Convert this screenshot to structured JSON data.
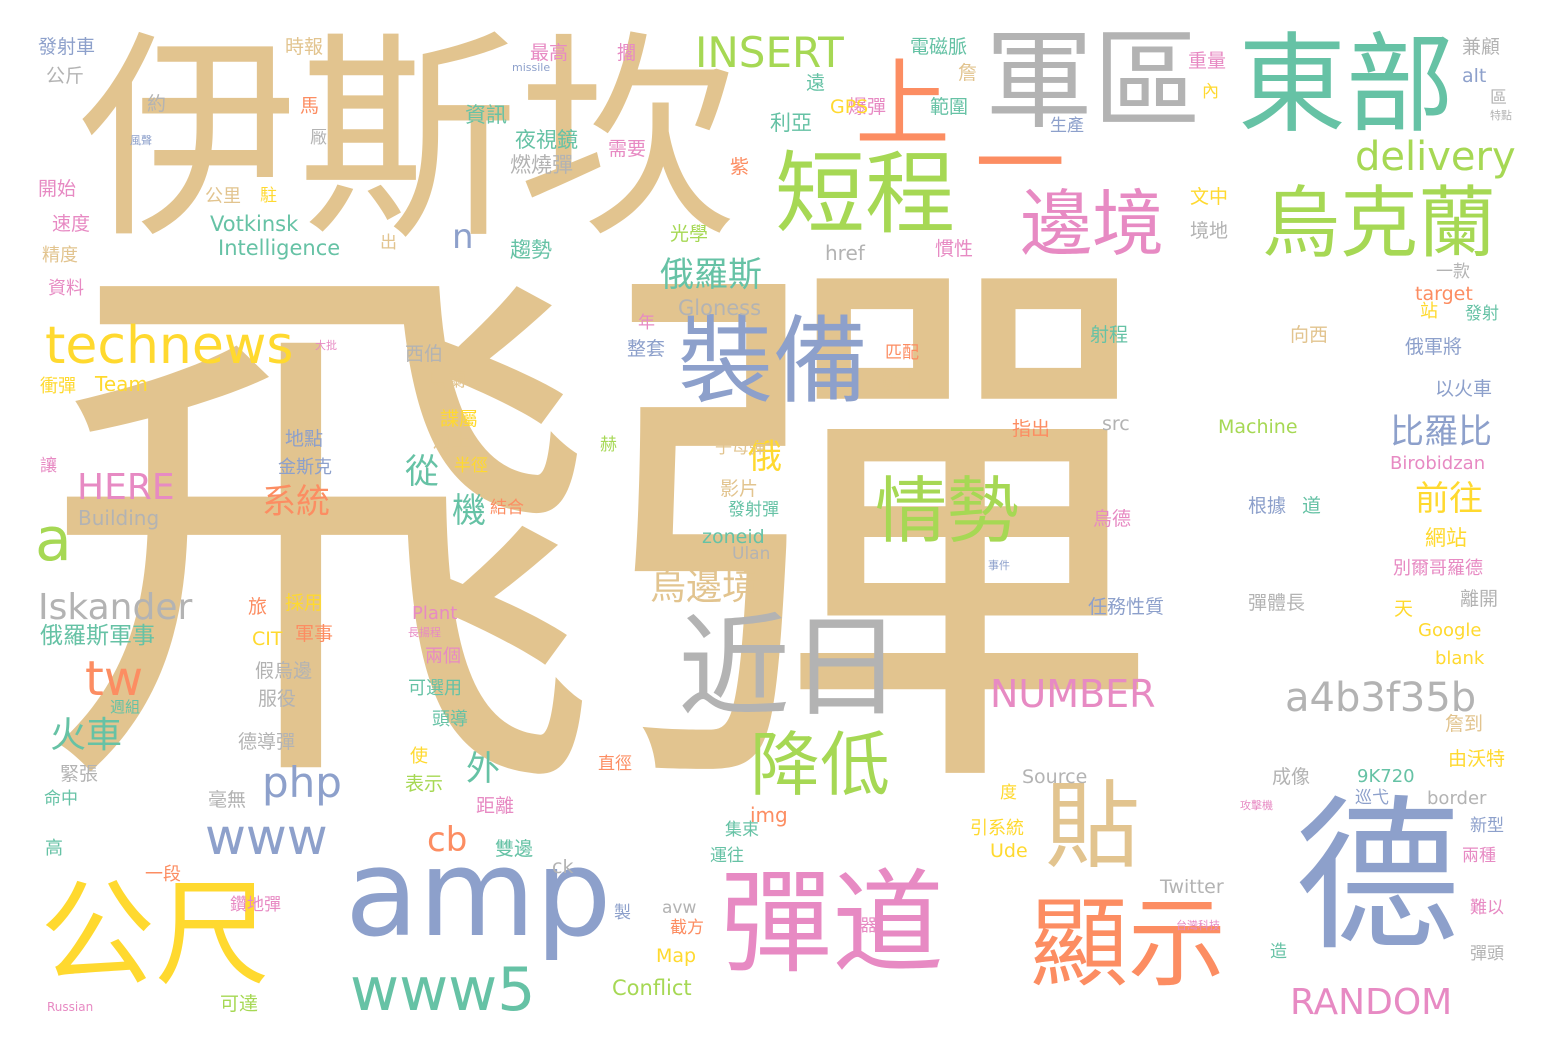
{
  "palette": {
    "tan": "#E2C48F",
    "green": "#66C2A5",
    "orange": "#FC8D62",
    "blue": "#8DA0CB",
    "pink": "#E78AC3",
    "lime": "#A6D854",
    "yellow": "#FFD92F",
    "grey": "#B3B3B3"
  },
  "words": [
    {
      "text": "飛彈",
      "color": "tan"
    },
    {
      "text": "伊斯坎",
      "color": "tan"
    },
    {
      "text": "軍區",
      "color": "grey"
    },
    {
      "text": "東部",
      "color": "green"
    },
    {
      "text": "一",
      "color": "orange"
    },
    {
      "text": "上",
      "color": "orange"
    },
    {
      "text": "短程",
      "color": "lime"
    },
    {
      "text": "邊境",
      "color": "pink"
    },
    {
      "text": "烏克蘭",
      "color": "lime"
    },
    {
      "text": "裝備",
      "color": "blue"
    },
    {
      "text": "technews",
      "color": "yellow"
    },
    {
      "text": "情勢",
      "color": "lime"
    },
    {
      "text": "近日",
      "color": "grey"
    },
    {
      "text": "貼",
      "color": "tan"
    },
    {
      "text": "德",
      "color": "blue"
    },
    {
      "text": "公尺",
      "color": "yellow"
    },
    {
      "text": "amp",
      "color": "blue"
    },
    {
      "text": "彈道",
      "color": "pink"
    },
    {
      "text": "顯示",
      "color": "orange"
    },
    {
      "text": "www5",
      "color": "green"
    },
    {
      "text": "www",
      "color": "blue"
    },
    {
      "text": "降低",
      "color": "lime"
    },
    {
      "text": "a4b3f35b",
      "color": "grey"
    },
    {
      "text": "RANDOM",
      "color": "pink"
    },
    {
      "text": "NUMBER",
      "color": "pink"
    },
    {
      "text": "delivery",
      "color": "lime"
    },
    {
      "text": "INSERT",
      "color": "lime"
    },
    {
      "text": "a",
      "color": "lime"
    },
    {
      "text": "tw",
      "color": "orange"
    },
    {
      "text": "php",
      "color": "blue"
    },
    {
      "text": "Iskander",
      "color": "grey"
    },
    {
      "text": "火車",
      "color": "green"
    },
    {
      "text": "HERE",
      "color": "pink"
    },
    {
      "text": "俄羅斯",
      "color": "green"
    },
    {
      "text": "烏邊境",
      "color": "tan"
    },
    {
      "text": "比羅比",
      "color": "blue"
    },
    {
      "text": "前往",
      "color": "yellow"
    },
    {
      "text": "系統",
      "color": "orange"
    },
    {
      "text": "cb",
      "color": "orange"
    },
    {
      "text": "n",
      "color": "blue"
    },
    {
      "text": "從",
      "color": "green"
    },
    {
      "text": "機",
      "color": "green"
    },
    {
      "text": "俄",
      "color": "yellow"
    },
    {
      "text": "外",
      "color": "green"
    },
    {
      "text": "俄羅斯軍事",
      "color": "green"
    },
    {
      "text": "Building",
      "color": "grey"
    },
    {
      "text": "Intelligence",
      "color": "green"
    },
    {
      "text": "Votkinsk",
      "color": "green"
    },
    {
      "text": "Gloness",
      "color": "grey"
    },
    {
      "text": "Team",
      "color": "yellow"
    },
    {
      "text": "資訊",
      "color": "green"
    },
    {
      "text": "夜視鏡",
      "color": "green"
    },
    {
      "text": "燃燒彈",
      "color": "grey"
    },
    {
      "text": "電磁脈",
      "color": "green"
    },
    {
      "text": "範圍",
      "color": "green"
    },
    {
      "text": "爆彈",
      "color": "pink"
    },
    {
      "text": "GPS",
      "color": "yellow"
    },
    {
      "text": "利亞",
      "color": "green"
    },
    {
      "text": "趨勢",
      "color": "green"
    },
    {
      "text": "光學",
      "color": "lime"
    },
    {
      "text": "href",
      "color": "grey"
    },
    {
      "text": "慣性",
      "color": "pink"
    },
    {
      "text": "文中",
      "color": "yellow"
    },
    {
      "text": "境地",
      "color": "grey"
    },
    {
      "text": "一款",
      "color": "grey"
    },
    {
      "text": "target",
      "color": "orange"
    },
    {
      "text": "發射",
      "color": "green"
    },
    {
      "text": "俄軍將",
      "color": "blue"
    },
    {
      "text": "以火車",
      "color": "blue"
    },
    {
      "text": "Birobidzan",
      "color": "pink"
    },
    {
      "text": "Machine",
      "color": "lime"
    },
    {
      "text": "src",
      "color": "grey"
    },
    {
      "text": "指出",
      "color": "orange"
    },
    {
      "text": "專頁",
      "color": "tan"
    },
    {
      "text": "匹配",
      "color": "orange"
    },
    {
      "text": "西伯",
      "color": "grey"
    },
    {
      "text": "烏蘭",
      "color": "tan"
    },
    {
      "text": "諜屬",
      "color": "yellow"
    },
    {
      "text": "加上",
      "color": "tan"
    },
    {
      "text": "半徑",
      "color": "yellow"
    },
    {
      "text": "結合",
      "color": "orange"
    },
    {
      "text": "地點",
      "color": "blue"
    },
    {
      "text": "金斯克",
      "color": "blue"
    },
    {
      "text": "子母彈",
      "color": "tan"
    },
    {
      "text": "影片",
      "color": "tan"
    },
    {
      "text": "發射彈",
      "color": "green"
    },
    {
      "text": "zoneid",
      "color": "green"
    },
    {
      "text": "Ulan",
      "color": "grey"
    },
    {
      "text": "網站",
      "color": "yellow"
    },
    {
      "text": "別爾哥羅德",
      "color": "pink"
    },
    {
      "text": "離開",
      "color": "grey"
    },
    {
      "text": "天",
      "color": "yellow"
    },
    {
      "text": "Google",
      "color": "yellow"
    },
    {
      "text": "blank",
      "color": "yellow"
    },
    {
      "text": "詹到",
      "color": "tan"
    },
    {
      "text": "由沃特",
      "color": "yellow"
    },
    {
      "text": "9K720",
      "color": "green"
    },
    {
      "text": "border",
      "color": "grey"
    },
    {
      "text": "新型",
      "color": "blue"
    },
    {
      "text": "兩種",
      "color": "pink"
    },
    {
      "text": "難以",
      "color": "pink"
    },
    {
      "text": "彈頭",
      "color": "grey"
    },
    {
      "text": "造",
      "color": "green"
    },
    {
      "text": "成像",
      "color": "grey"
    },
    {
      "text": "巡弋",
      "color": "blue"
    },
    {
      "text": "Source",
      "color": "grey"
    },
    {
      "text": "引系統",
      "color": "yellow"
    },
    {
      "text": "Ude",
      "color": "yellow"
    },
    {
      "text": "Twitter",
      "color": "grey"
    },
    {
      "text": "度",
      "color": "yellow"
    },
    {
      "text": "img",
      "color": "orange"
    },
    {
      "text": "集束",
      "color": "green"
    },
    {
      "text": "運往",
      "color": "green"
    },
    {
      "text": "avw",
      "color": "grey"
    },
    {
      "text": "截方",
      "color": "orange"
    },
    {
      "text": "Map",
      "color": "yellow"
    },
    {
      "text": "Conflict",
      "color": "lime"
    },
    {
      "text": "製",
      "color": "blue"
    },
    {
      "text": "器",
      "color": "pink"
    },
    {
      "text": "ck",
      "color": "grey"
    },
    {
      "text": "雙邊",
      "color": "green"
    },
    {
      "text": "距離",
      "color": "pink"
    },
    {
      "text": "表示",
      "color": "lime"
    },
    {
      "text": "使",
      "color": "yellow"
    },
    {
      "text": "直徑",
      "color": "orange"
    },
    {
      "text": "頭導",
      "color": "green"
    },
    {
      "text": "可選用",
      "color": "green"
    },
    {
      "text": "兩個",
      "color": "pink"
    },
    {
      "text": "Plant",
      "color": "pink"
    },
    {
      "text": "CIT",
      "color": "yellow"
    },
    {
      "text": "軍事",
      "color": "orange"
    },
    {
      "text": "旅",
      "color": "orange"
    },
    {
      "text": "採用",
      "color": "yellow"
    },
    {
      "text": "假烏邊",
      "color": "grey"
    },
    {
      "text": "服役",
      "color": "grey"
    },
    {
      "text": "德導彈",
      "color": "grey"
    },
    {
      "text": "緊張",
      "color": "grey"
    },
    {
      "text": "毫無",
      "color": "grey"
    },
    {
      "text": "命中",
      "color": "green"
    },
    {
      "text": "高",
      "color": "green"
    },
    {
      "text": "一段",
      "color": "orange"
    },
    {
      "text": "鑽地彈",
      "color": "pink"
    },
    {
      "text": "可達",
      "color": "lime"
    },
    {
      "text": "Russian",
      "color": "pink"
    },
    {
      "text": "週組",
      "color": "green"
    },
    {
      "text": "讓",
      "color": "pink"
    },
    {
      "text": "衝彈",
      "color": "yellow"
    },
    {
      "text": "資料",
      "color": "pink"
    },
    {
      "text": "精度",
      "color": "tan"
    },
    {
      "text": "速度",
      "color": "pink"
    },
    {
      "text": "開始",
      "color": "pink"
    },
    {
      "text": "公斤",
      "color": "grey"
    },
    {
      "text": "發射車",
      "color": "blue"
    },
    {
      "text": "時報",
      "color": "tan"
    },
    {
      "text": "約",
      "color": "grey"
    },
    {
      "text": "馬",
      "color": "orange"
    },
    {
      "text": "厰",
      "color": "grey"
    },
    {
      "text": "出",
      "color": "tan"
    },
    {
      "text": "公里",
      "color": "tan"
    },
    {
      "text": "駐",
      "color": "yellow"
    },
    {
      "text": "年",
      "color": "pink"
    },
    {
      "text": "整套",
      "color": "blue"
    },
    {
      "text": "需要",
      "color": "pink"
    },
    {
      "text": "紫",
      "color": "orange"
    },
    {
      "text": "最高",
      "color": "pink"
    },
    {
      "text": "擱",
      "color": "pink"
    },
    {
      "text": "遠",
      "color": "green"
    },
    {
      "text": "詹",
      "color": "tan"
    },
    {
      "text": "重量",
      "color": "pink"
    },
    {
      "text": "內",
      "color": "yellow"
    },
    {
      "text": "兼顧",
      "color": "grey"
    },
    {
      "text": "alt",
      "color": "blue"
    },
    {
      "text": "區",
      "color": "grey"
    },
    {
      "text": "生產",
      "color": "blue"
    },
    {
      "text": "射程",
      "color": "green"
    },
    {
      "text": "向西",
      "color": "tan"
    },
    {
      "text": "烏德",
      "color": "pink"
    },
    {
      "text": "根據",
      "color": "blue"
    },
    {
      "text": "道",
      "color": "green"
    },
    {
      "text": "任務性質",
      "color": "blue"
    },
    {
      "text": "彈體長",
      "color": "grey"
    },
    {
      "text": "站",
      "color": "yellow"
    },
    {
      "text": "赫",
      "color": "lime"
    },
    {
      "text": "missile",
      "color": "blue"
    },
    {
      "text": "風聲",
      "color": "blue"
    },
    {
      "text": "大批",
      "color": "pink"
    },
    {
      "text": "長揚程",
      "color": "pink"
    },
    {
      "text": "台灣科技",
      "color": "pink"
    },
    {
      "text": "攻擊機",
      "color": "pink"
    },
    {
      "text": "事件",
      "color": "blue"
    },
    {
      "text": "特點",
      "color": "grey"
    }
  ]
}
